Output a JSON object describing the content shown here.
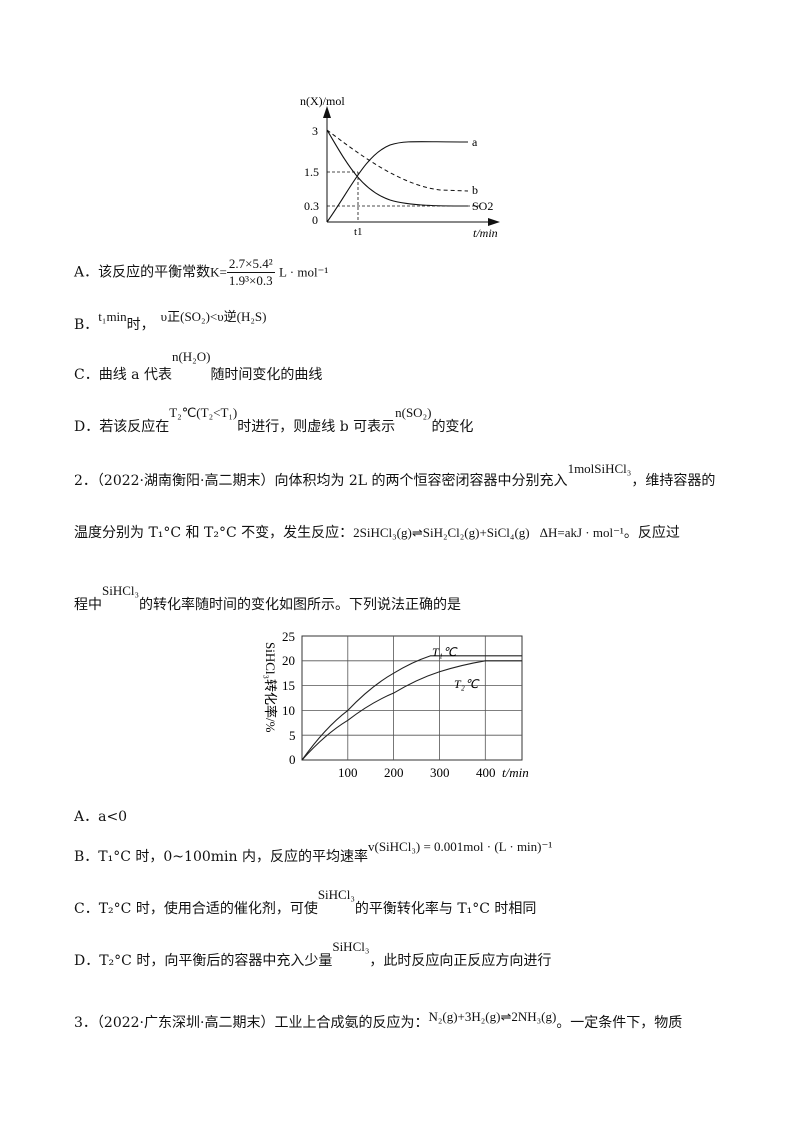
{
  "chart_data": [
    {
      "type": "line",
      "ylabel": "n(X)/mol",
      "xlabel": "t/min",
      "y_ticks": [
        "3",
        "1.5",
        "0.3",
        "0"
      ],
      "x_ticks": [
        "t1"
      ],
      "series": [
        {
          "name": "a",
          "style": "solid",
          "points": [
            [
              0,
              0
            ],
            [
              1,
              1.5
            ],
            [
              2,
              2.7
            ],
            [
              3,
              2.7
            ]
          ]
        },
        {
          "name": "b",
          "style": "dashed",
          "points": [
            [
              0,
              3
            ],
            [
              1,
              1.9
            ],
            [
              2,
              1.2
            ],
            [
              3,
              0.9
            ]
          ]
        },
        {
          "name": "SO2",
          "style": "solid",
          "points": [
            [
              0,
              3
            ],
            [
              1,
              1.5
            ],
            [
              2,
              0.3
            ],
            [
              3,
              0.3
            ]
          ]
        }
      ]
    },
    {
      "type": "line",
      "ylabel": "SiHCl3转化率/%",
      "xlabel": "t/min",
      "x_ticks": [
        "100",
        "200",
        "300",
        "400"
      ],
      "y_ticks": [
        "25",
        "20",
        "15",
        "10",
        "5",
        "0"
      ],
      "xlim": [
        0,
        480
      ],
      "ylim": [
        0,
        25
      ],
      "grid": true,
      "series": [
        {
          "name": "T1℃",
          "points": [
            [
              0,
              0
            ],
            [
              100,
              10
            ],
            [
              200,
              17.5
            ],
            [
              280,
              21
            ],
            [
              480,
              21
            ]
          ]
        },
        {
          "name": "T2℃",
          "points": [
            [
              0,
              0
            ],
            [
              100,
              8
            ],
            [
              200,
              13.5
            ],
            [
              300,
              17.8
            ],
            [
              400,
              20
            ],
            [
              480,
              20
            ]
          ]
        }
      ]
    }
  ],
  "chart1": {
    "ylabel": "n(X)/mol",
    "xlabel": "t/min",
    "tick_3": "3",
    "tick_15": "1.5",
    "tick_03": "0.3",
    "tick_0": "0",
    "tick_t1": "t1",
    "label_a": "a",
    "label_b": "b",
    "label_so2": "SO2"
  },
  "q1": {
    "A_prefix": "A．该反应的平衡常数",
    "A_k": "K=",
    "A_num": "2.7×5.4²",
    "A_den": "1.9³×0.3",
    "A_unit": "L · mol⁻¹",
    "B_prefix": "B．",
    "B_t": "t₁min",
    "B_shi": "时，",
    "B_expr": "υ正(SO₂)<υ逆(H₂S)",
    "C_prefix": "C．曲线 a 代表",
    "C_expr": "n(H₂O)",
    "C_suffix": "随时间变化的曲线",
    "D_prefix": "D．若该反应在",
    "D_expr": "T₂℃(T₂<T₁)",
    "D_mid": "时进行，则虚线 b 可表示",
    "D_expr2": "n(SO₂)",
    "D_suffix": "的变化"
  },
  "q2": {
    "num": "2．",
    "source": "（2022·湖南衡阳·高二期末）向体积均为 2L 的两个恒容密闭容器中分别充入",
    "amount": "1molSiHCl₃",
    "cont1": "，维持容器的",
    "line2_a": "温度分别为 T₁°C 和 T₂°C 不变，发生反应：",
    "equation": "2SiHCl₃(g)⇌SiH₂Cl₂(g)+SiCl₄(g)",
    "dh": "ΔH=akJ · mol⁻¹",
    "line2_b": "。反应过",
    "line3_a": "程中",
    "line3_expr": "SiHCl₃",
    "line3_b": "的转化率随时间的变化如图所示。下列说法正确的是",
    "A": "A．a<0",
    "B_prefix": "B．T₁°C 时，0~100min 内，反应的平均速率",
    "B_expr": "v(SiHCl₃) = 0.001mol · (L · min)⁻¹",
    "C_prefix": "C．T₂°C 时，使用合适的催化剂，可使",
    "C_expr": "SiHCl₃",
    "C_suffix": "的平衡转化率与 T₁°C 时相同",
    "D_prefix": "D．T₂°C 时，向平衡后的容器中充入少量",
    "D_expr": "SiHCl₃",
    "D_suffix": "，此时反应向正反应方向进行"
  },
  "chart2": {
    "ylabel": "SiHCl₃转化率/%",
    "xlabel": "t/min",
    "y25": "25",
    "y20": "20",
    "y15": "15",
    "y10": "10",
    "y5": "5",
    "y0": "0",
    "x100": "100",
    "x200": "200",
    "x300": "300",
    "x400": "400",
    "t1": "T₁℃",
    "t2": "T₂℃"
  },
  "q3": {
    "num": "3．",
    "source": "（2022·广东深圳·高二期末）工业上合成氨的反应为：",
    "equation": "N₂(g)+3H₂(g)⇌2NH₃(g)",
    "suffix": "。一定条件下，物质"
  }
}
